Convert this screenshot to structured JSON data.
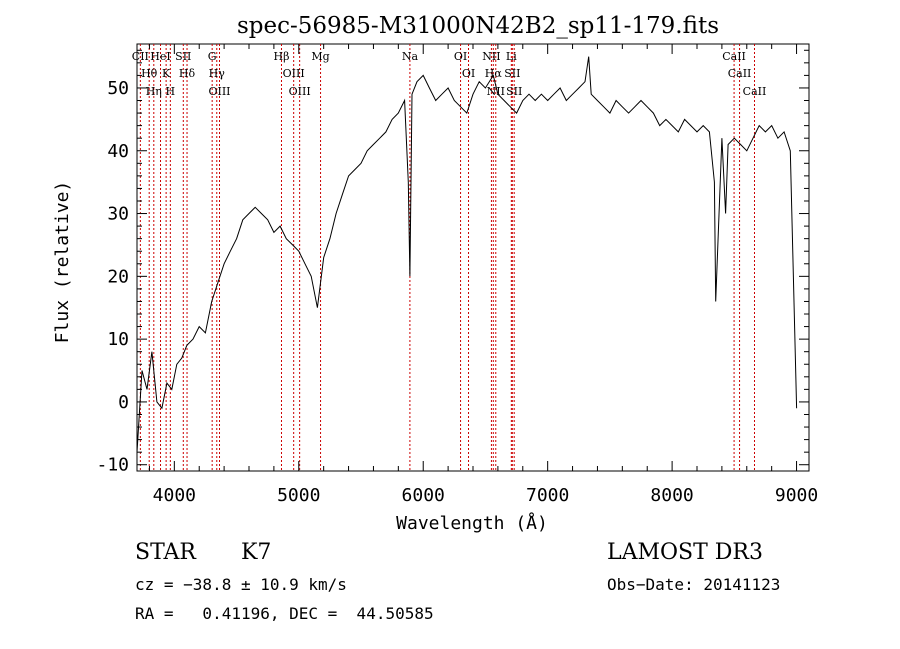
{
  "chart_data": {
    "type": "line",
    "title": "spec-56985-M31000N42B2_sp11-179.fits",
    "xlabel": "Wavelength (Å)",
    "ylabel": "Flux (relative)",
    "xlim": [
      3700,
      9100
    ],
    "ylim": [
      -11,
      57
    ],
    "x_ticks": [
      4000,
      5000,
      6000,
      7000,
      8000,
      9000
    ],
    "y_ticks": [
      -10,
      0,
      10,
      20,
      30,
      40,
      50
    ],
    "x_tick_labels": [
      "4000",
      "5000",
      "6000",
      "7000",
      "8000",
      "9000"
    ],
    "y_tick_labels": [
      "-10",
      "0",
      "10",
      "20",
      "30",
      "40",
      "50"
    ],
    "series": [
      {
        "x": [
          3700,
          3740,
          3780,
          3820,
          3860,
          3900,
          3940,
          3980,
          4020,
          4060,
          4100,
          4150,
          4200,
          4250,
          4300,
          4350,
          4400,
          4450,
          4500,
          4550,
          4600,
          4650,
          4700,
          4750,
          4800,
          4850,
          4900,
          4950,
          5000,
          5050,
          5100,
          5150,
          5200,
          5250,
          5300,
          5350,
          5400,
          5450,
          5500,
          5550,
          5600,
          5650,
          5700,
          5750,
          5800,
          5850,
          5880,
          5893,
          5910,
          5950,
          6000,
          6050,
          6100,
          6150,
          6200,
          6250,
          6300,
          6350,
          6400,
          6450,
          6500,
          6563,
          6600,
          6650,
          6700,
          6750,
          6800,
          6850,
          6900,
          6950,
          7000,
          7050,
          7100,
          7150,
          7200,
          7250,
          7300,
          7330,
          7350,
          7400,
          7450,
          7500,
          7550,
          7600,
          7650,
          7700,
          7750,
          7800,
          7850,
          7900,
          7950,
          8000,
          8050,
          8100,
          8150,
          8200,
          8250,
          8300,
          8340,
          8350,
          8400,
          8430,
          8450,
          8500,
          8550,
          8600,
          8650,
          8700,
          8750,
          8800,
          8850,
          8900,
          8950,
          9000
        ],
        "y": [
          -8,
          5,
          2,
          8,
          0,
          -1,
          3,
          2,
          6,
          7,
          9,
          10,
          12,
          11,
          16,
          19,
          22,
          24,
          26,
          29,
          30,
          31,
          30,
          29,
          27,
          28,
          26,
          25,
          24,
          22,
          20,
          15,
          23,
          26,
          30,
          33,
          36,
          37,
          38,
          40,
          41,
          42,
          43,
          45,
          46,
          48,
          35,
          20,
          49,
          51,
          52,
          50,
          48,
          49,
          50,
          48,
          47,
          46,
          49,
          51,
          50,
          52,
          49,
          48,
          47,
          46,
          48,
          49,
          48,
          49,
          48,
          49,
          50,
          48,
          49,
          50,
          51,
          55,
          49,
          48,
          47,
          46,
          48,
          47,
          46,
          47,
          48,
          47,
          46,
          44,
          45,
          44,
          43,
          45,
          44,
          43,
          44,
          43,
          35,
          16,
          42,
          30,
          41,
          42,
          41,
          40,
          42,
          44,
          43,
          44,
          42,
          43,
          40,
          -1
        ]
      }
    ],
    "lines": [
      {
        "label": "CII",
        "x": 3727
      },
      {
        "label": "Hθ",
        "x": 3798
      },
      {
        "label": "Hη",
        "x": 3835
      },
      {
        "label": "HeI",
        "x": 3889
      },
      {
        "label": "K",
        "x": 3934
      },
      {
        "label": "H",
        "x": 3968
      },
      {
        "label": "SII",
        "x": 4072
      },
      {
        "label": "Hδ",
        "x": 4102
      },
      {
        "label": "G",
        "x": 4304
      },
      {
        "label": "Hγ",
        "x": 4341
      },
      {
        "label": "OIII",
        "x": 4363
      },
      {
        "label": "Hβ",
        "x": 4861
      },
      {
        "label": "OIII",
        "x": 4959
      },
      {
        "label": "OIII",
        "x": 5007
      },
      {
        "label": "Mg",
        "x": 5175
      },
      {
        "label": "Na",
        "x": 5893
      },
      {
        "label": "OI",
        "x": 6300
      },
      {
        "label": "OI",
        "x": 6364
      },
      {
        "label": "NII",
        "x": 6548
      },
      {
        "label": "Hα",
        "x": 6563
      },
      {
        "label": "NII",
        "x": 6583
      },
      {
        "label": "Li",
        "x": 6708
      },
      {
        "label": "SII",
        "x": 6716
      },
      {
        "label": "SII",
        "x": 6731
      },
      {
        "label": "CaII",
        "x": 8498
      },
      {
        "label": "CaII",
        "x": 8542
      },
      {
        "label": "CaII",
        "x": 8662
      }
    ]
  },
  "info": {
    "class": "STAR",
    "subclass": "K7",
    "cz": "cz = −38.8 ± 10.9 km/s",
    "coords": "RA =   0.41196, DEC =  44.50585",
    "survey": "LAMOST DR3",
    "obsdate": "Obs−Date: 20141123"
  },
  "colors": {
    "spectrum": "#000000",
    "marker_lines": "#cc0000",
    "axes": "#000000"
  }
}
